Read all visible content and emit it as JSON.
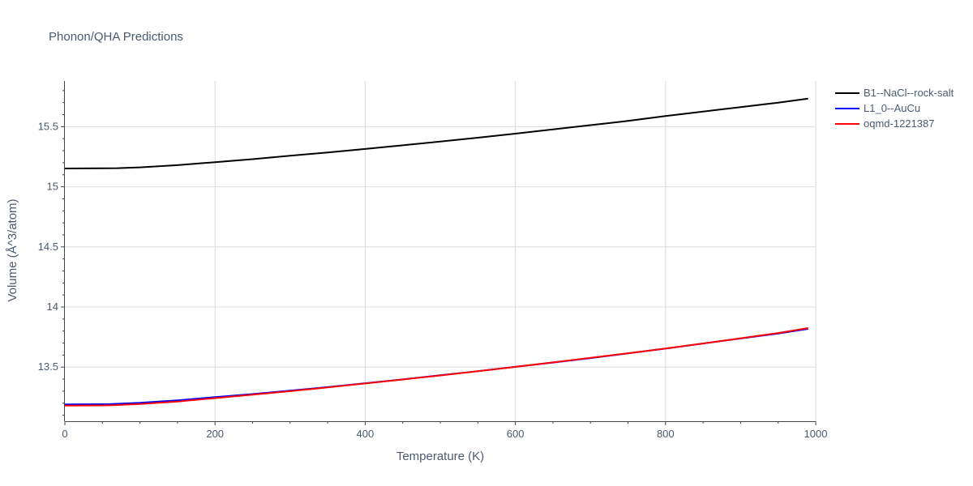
{
  "chart_data": {
    "type": "line",
    "title": "Phonon/QHA Predictions",
    "xlabel": "Temperature (K)",
    "ylabel": "Volume (Å^3/atom)",
    "xlim": [
      0,
      1000
    ],
    "ylim": [
      13.05,
      15.88
    ],
    "x_ticks": [
      0,
      200,
      400,
      600,
      800,
      1000
    ],
    "x_tick_labels": [
      "0",
      "200",
      "400",
      "600",
      "800",
      "1000"
    ],
    "y_ticks": [
      13.5,
      14,
      14.5,
      15,
      15.5
    ],
    "y_tick_labels": [
      "13.5",
      "14",
      "14.5",
      "15",
      "15.5"
    ],
    "grid": true,
    "legend_position": "top-right",
    "series": [
      {
        "name": "B1--NaCl--rock-salt",
        "color": "#000000",
        "x": [
          0,
          70,
          100,
          150,
          200,
          250,
          300,
          350,
          400,
          450,
          500,
          550,
          600,
          650,
          700,
          750,
          800,
          850,
          900,
          950,
          990
        ],
        "y": [
          15.152,
          15.155,
          15.162,
          15.18,
          15.205,
          15.23,
          15.258,
          15.286,
          15.315,
          15.345,
          15.377,
          15.408,
          15.442,
          15.478,
          15.513,
          15.548,
          15.588,
          15.625,
          15.663,
          15.7,
          15.733
        ]
      },
      {
        "name": "L1_0--AuCu",
        "color": "#0000ff",
        "x": [
          0,
          60,
          100,
          150,
          200,
          250,
          300,
          350,
          400,
          450,
          500,
          550,
          600,
          650,
          700,
          750,
          800,
          850,
          900,
          950,
          990
        ],
        "y": [
          13.19,
          13.192,
          13.203,
          13.224,
          13.25,
          13.276,
          13.304,
          13.334,
          13.366,
          13.398,
          13.432,
          13.466,
          13.502,
          13.538,
          13.575,
          13.614,
          13.654,
          13.696,
          13.738,
          13.78,
          13.818
        ]
      },
      {
        "name": "oqmd-1221387",
        "color": "#ff0000",
        "x": [
          0,
          60,
          100,
          150,
          200,
          250,
          300,
          350,
          400,
          450,
          500,
          550,
          600,
          650,
          700,
          750,
          800,
          850,
          900,
          950,
          990
        ],
        "y": [
          13.18,
          13.182,
          13.193,
          13.214,
          13.242,
          13.27,
          13.3,
          13.331,
          13.364,
          13.397,
          13.431,
          13.466,
          13.502,
          13.539,
          13.577,
          13.615,
          13.655,
          13.697,
          13.74,
          13.784,
          13.825
        ]
      }
    ]
  }
}
